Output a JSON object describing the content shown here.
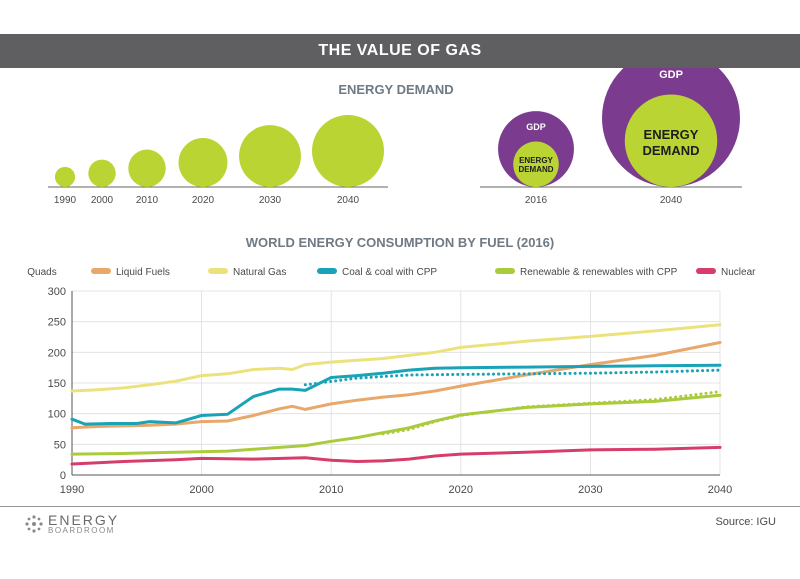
{
  "page": {
    "title": "THE VALUE OF GAS",
    "source": "Source: IGU",
    "logo": {
      "line1": "ENERGY",
      "line2": "BOARDROOM"
    }
  },
  "colors": {
    "lime": "#b9d433",
    "purple": "#7b3b8f",
    "title_gray": "#6f7a84",
    "banner": "#5f5f61",
    "axis_text": "#4a4a4a",
    "grid": "#dddddd"
  },
  "demand_chart": {
    "title": "ENERGY DEMAND",
    "years": [
      "1990",
      "2000",
      "2010",
      "2020",
      "2030",
      "2040"
    ],
    "relative_size": [
      0.28,
      0.38,
      0.52,
      0.68,
      0.86,
      1.0
    ]
  },
  "gdp_chart": {
    "items": [
      {
        "year": "2016",
        "outer_label": "GDP",
        "inner_label_1": "ENERGY",
        "inner_label_2": "DEMAND",
        "outer_size": 0.55,
        "inner_size": 0.33
      },
      {
        "year": "2040",
        "outer_label": "GDP",
        "inner_label_1": "ENERGY",
        "inner_label_2": "DEMAND",
        "outer_size": 1.0,
        "inner_size": 0.67
      }
    ]
  },
  "chart_data": {
    "type": "line",
    "title": "WORLD ENERGY CONSUMPTION BY FUEL (2016)",
    "ylabel": "Quads",
    "xlim": [
      1990,
      2040
    ],
    "ylim": [
      0,
      300
    ],
    "xticks": [
      1990,
      2000,
      2010,
      2020,
      2030,
      2040
    ],
    "yticks": [
      0,
      50,
      100,
      150,
      200,
      250,
      300
    ],
    "grid": true,
    "legend_position": "top",
    "series": [
      {
        "name": "Liquid Fuels",
        "color": "#e8a86b",
        "x": [
          1990,
          1992,
          1994,
          1996,
          1998,
          2000,
          2002,
          2004,
          2006,
          2007,
          2008,
          2010,
          2012,
          2014,
          2016,
          2018,
          2020,
          2025,
          2030,
          2035,
          2040
        ],
        "y": [
          77,
          79,
          80,
          81,
          83,
          87,
          88,
          97,
          108,
          112,
          107,
          116,
          122,
          127,
          131,
          137,
          145,
          163,
          180,
          195,
          216
        ]
      },
      {
        "name": "Natural Gas",
        "color": "#ece27d",
        "x": [
          1990,
          1992,
          1994,
          1996,
          1998,
          2000,
          2002,
          2004,
          2006,
          2007,
          2008,
          2010,
          2012,
          2014,
          2016,
          2018,
          2020,
          2025,
          2030,
          2035,
          2040
        ],
        "y": [
          137,
          139,
          142,
          147,
          153,
          162,
          165,
          172,
          174,
          172,
          180,
          184,
          187,
          190,
          195,
          200,
          208,
          218,
          226,
          235,
          245
        ]
      },
      {
        "name": "Coal & coal with CPP",
        "color": "#1aa3b6",
        "x": [
          1990,
          1991,
          1993,
          1995,
          1996,
          1998,
          2000,
          2002,
          2004,
          2006,
          2007,
          2008,
          2010,
          2012,
          2014,
          2016,
          2018,
          2020,
          2025,
          2030,
          2035,
          2040
        ],
        "y": [
          91,
          83,
          84,
          84,
          87,
          85,
          97,
          99,
          128,
          140,
          140,
          138,
          159,
          162,
          166,
          171,
          174,
          175,
          176,
          177,
          178,
          179
        ]
      },
      {
        "name": "Coal & coal with CPP (dotted)",
        "color": "#1aa3b6",
        "dotted": true,
        "x": [
          2008,
          2012,
          2016,
          2020,
          2025,
          2030,
          2035,
          2040
        ],
        "y": [
          147,
          158,
          163,
          164,
          165,
          166,
          168,
          171
        ]
      },
      {
        "name": "Renewable & renewables with CPP",
        "color": "#a9cb3c",
        "x": [
          1990,
          1994,
          1998,
          2002,
          2006,
          2008,
          2010,
          2012,
          2014,
          2016,
          2018,
          2020,
          2025,
          2030,
          2035,
          2040
        ],
        "y": [
          34,
          35,
          37,
          39,
          45,
          48,
          55,
          61,
          69,
          77,
          88,
          98,
          110,
          116,
          120,
          130
        ]
      },
      {
        "name": "Renewable & renewables with CPP (dotted)",
        "color": "#a9cb3c",
        "dotted": true,
        "x": [
          2014,
          2016,
          2018,
          2020,
          2025,
          2030,
          2035,
          2040
        ],
        "y": [
          67,
          74,
          87,
          97,
          111,
          117,
          123,
          136
        ]
      },
      {
        "name": "Nuclear",
        "color": "#d63d6b",
        "x": [
          1990,
          1994,
          1998,
          2000,
          2004,
          2008,
          2010,
          2012,
          2014,
          2016,
          2018,
          2020,
          2025,
          2030,
          2035,
          2040
        ],
        "y": [
          18,
          22,
          25,
          27,
          26,
          28,
          24,
          22,
          23,
          26,
          31,
          34,
          37,
          41,
          42,
          45
        ]
      }
    ],
    "legend": [
      {
        "name": "Liquid Fuels",
        "color": "#e8a86b"
      },
      {
        "name": "Natural Gas",
        "color": "#ece27d"
      },
      {
        "name": "Coal & coal with CPP",
        "color": "#1aa3b6"
      },
      {
        "name": "Renewable & renewables with CPP",
        "color": "#a9cb3c"
      },
      {
        "name": "Nuclear",
        "color": "#d63d6b"
      }
    ]
  }
}
